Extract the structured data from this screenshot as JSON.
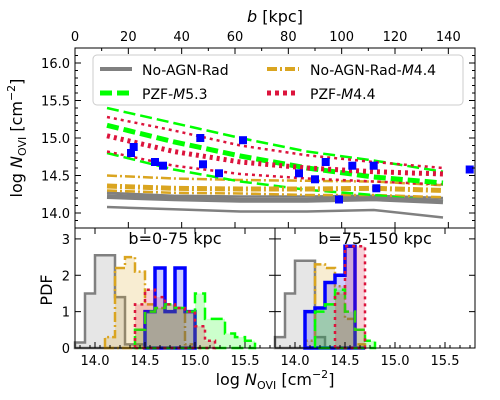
{
  "chart_data": [
    {
      "type": "line",
      "panel": "top",
      "xlabel_top": "b [kpc]",
      "xlim": [
        0,
        150
      ],
      "xticks": [
        0,
        20,
        40,
        60,
        80,
        100,
        120,
        140
      ],
      "ylabel": "log N_OVI [cm^-2]",
      "ylim": [
        13.8,
        16.2
      ],
      "yticks": [
        14.0,
        14.5,
        15.0,
        15.5,
        16.0
      ],
      "grid": false,
      "legend_position": "top",
      "legend": [
        {
          "label": "No-AGN-Rad",
          "color": "#808080",
          "style": "solid"
        },
        {
          "label": "No-AGN-Rad-M4.4",
          "color": "#DAA520",
          "style": "dashdot"
        },
        {
          "label": "PZF-M5.3",
          "color": "#00FF00",
          "style": "dashed"
        },
        {
          "label": "PZF-M4.4",
          "color": "#DC143C",
          "style": "dotted"
        }
      ],
      "series": [
        {
          "name": "No-AGN-Rad",
          "color": "#808080",
          "style": "solid",
          "x": [
            12,
            37,
            62,
            87,
            112,
            138
          ],
          "median": [
            14.22,
            14.19,
            14.17,
            14.17,
            14.19,
            14.15
          ],
          "p16": [
            14.08,
            14.05,
            14.02,
            14.02,
            14.04,
            13.94
          ],
          "p84": [
            14.27,
            14.23,
            14.22,
            14.22,
            14.23,
            14.2
          ]
        },
        {
          "name": "No-AGN-Rad-M4.4",
          "color": "#DAA520",
          "style": "dashdot",
          "x": [
            12,
            37,
            62,
            87,
            112,
            138
          ],
          "median": [
            14.36,
            14.33,
            14.32,
            14.32,
            14.33,
            14.3
          ],
          "p16": [
            14.3,
            14.27,
            14.26,
            14.24,
            14.24,
            14.21
          ],
          "p84": [
            14.5,
            14.46,
            14.44,
            14.43,
            14.42,
            14.37
          ]
        },
        {
          "name": "PZF-M5.3",
          "color": "#00FF00",
          "style": "dashed",
          "x": [
            12,
            37,
            62,
            87,
            112,
            138
          ],
          "median": [
            15.17,
            14.95,
            14.76,
            14.6,
            14.48,
            14.4
          ],
          "p16": [
            14.8,
            14.58,
            14.42,
            14.31,
            14.24,
            14.15
          ],
          "p84": [
            15.4,
            15.2,
            15.0,
            14.82,
            14.7,
            14.55
          ]
        },
        {
          "name": "PZF-M4.4",
          "color": "#DC143C",
          "style": "dotted",
          "x": [
            12,
            37,
            62,
            87,
            112,
            138
          ],
          "median": [
            15.03,
            14.82,
            14.68,
            14.6,
            14.55,
            14.52
          ],
          "p16": [
            14.82,
            14.63,
            14.52,
            14.46,
            14.42,
            14.38
          ],
          "p84": [
            15.28,
            15.1,
            14.9,
            14.77,
            14.68,
            14.6
          ]
        }
      ],
      "observations": {
        "color": "#0000FF",
        "points": [
          {
            "x": 21,
            "y": 14.8
          },
          {
            "x": 22,
            "y": 14.88
          },
          {
            "x": 30,
            "y": 14.68
          },
          {
            "x": 33,
            "y": 14.63
          },
          {
            "x": 47,
            "y": 15.0
          },
          {
            "x": 48,
            "y": 14.65
          },
          {
            "x": 54,
            "y": 14.53
          },
          {
            "x": 63,
            "y": 14.97
          },
          {
            "x": 84,
            "y": 14.53
          },
          {
            "x": 90,
            "y": 14.45
          },
          {
            "x": 94,
            "y": 14.68
          },
          {
            "x": 99,
            "y": 14.18
          },
          {
            "x": 104,
            "y": 14.63
          },
          {
            "x": 112,
            "y": 14.63
          },
          {
            "x": 113,
            "y": 14.33
          },
          {
            "x": 148,
            "y": 14.58
          }
        ]
      }
    },
    {
      "type": "histogram",
      "panel": "bottom-left",
      "title": "b=0-75 kpc",
      "xlim": [
        13.8,
        15.8
      ],
      "xticks": [
        14.0,
        14.5,
        15.0,
        15.5
      ],
      "ylabel": "PDF",
      "ylim": [
        0,
        3.3
      ],
      "yticks": [
        0,
        1,
        2,
        3
      ],
      "series": [
        {
          "name": "No-AGN-Rad",
          "color": "#808080",
          "style": "solid",
          "edges": [
            13.8,
            13.9,
            14.0,
            14.1,
            14.2,
            14.3,
            14.4,
            14.5
          ],
          "values": [
            0.15,
            1.5,
            2.55,
            2.55,
            1.4,
            0.1,
            0.1
          ]
        },
        {
          "name": "No-AGN-Rad-M4.4",
          "color": "#DAA520",
          "style": "dashdot",
          "edges": [
            14.1,
            14.2,
            14.3,
            14.4,
            14.5,
            14.6,
            14.7,
            14.8,
            14.9,
            15.0
          ],
          "values": [
            0.3,
            2.2,
            2.5,
            2.1,
            1.2,
            1.1,
            1.0,
            1.1,
            0.1
          ]
        },
        {
          "name": "Observations",
          "color": "#0000FF",
          "style": "solid",
          "edges": [
            14.5,
            14.6,
            14.7,
            14.8,
            14.9,
            15.0
          ],
          "values": [
            1.0,
            2.2,
            1.0,
            2.2,
            1.0
          ]
        },
        {
          "name": "PZF-M5.3",
          "color": "#00FF00",
          "style": "dashed",
          "edges": [
            14.4,
            14.5,
            14.6,
            14.7,
            14.8,
            14.9,
            15.0,
            15.1,
            15.2,
            15.3,
            15.4,
            15.5,
            15.6
          ],
          "values": [
            0.5,
            1.0,
            1.1,
            1.2,
            1.1,
            1.0,
            1.5,
            0.8,
            0.8,
            0.4,
            0.3,
            0.2
          ]
        },
        {
          "name": "PZF-M4.4",
          "color": "#DC143C",
          "style": "dotted",
          "edges": [
            14.4,
            14.5,
            14.6,
            14.7,
            14.8,
            14.9,
            15.0,
            15.1,
            15.2
          ],
          "values": [
            1.2,
            1.6,
            1.4,
            1.2,
            1.1,
            1.0,
            0.6,
            0.2
          ]
        }
      ]
    },
    {
      "type": "histogram",
      "panel": "bottom-right",
      "title": "b=75-150 kpc",
      "xlim": [
        13.8,
        15.8
      ],
      "xticks": [
        14.0,
        14.5,
        15.0,
        15.5
      ],
      "ylim": [
        0,
        3.3
      ],
      "series": [
        {
          "name": "No-AGN-Rad",
          "color": "#808080",
          "style": "solid",
          "edges": [
            13.8,
            13.9,
            14.0,
            14.1,
            14.2,
            14.3
          ],
          "values": [
            0.3,
            1.5,
            2.4,
            2.4,
            0.3
          ]
        },
        {
          "name": "No-AGN-Rad-M4.4",
          "color": "#DAA520",
          "style": "dashdot",
          "edges": [
            14.1,
            14.2,
            14.3,
            14.4,
            14.5,
            14.6,
            14.7
          ],
          "values": [
            0.2,
            2.3,
            2.2,
            1.7,
            0.8,
            0.1
          ]
        },
        {
          "name": "Observations",
          "color": "#0000FF",
          "style": "solid",
          "edges": [
            14.1,
            14.2,
            14.3,
            14.4,
            14.5,
            14.6,
            14.7
          ],
          "values": [
            1.0,
            1.1,
            1.8,
            2.0,
            2.8,
            0.0
          ]
        },
        {
          "name": "PZF-M5.3",
          "color": "#00FF00",
          "style": "dashed",
          "edges": [
            14.2,
            14.3,
            14.4,
            14.5,
            14.6,
            14.7,
            14.8
          ],
          "values": [
            1.0,
            1.2,
            1.6,
            1.0,
            0.5,
            0.2
          ]
        },
        {
          "name": "PZF-M4.4",
          "color": "#DC143C",
          "style": "dotted",
          "edges": [
            14.4,
            14.5,
            14.6,
            14.7
          ],
          "values": [
            1.5,
            2.8,
            2.8
          ]
        }
      ]
    }
  ],
  "labels": {
    "top_xlabel_prefix": "b",
    "top_xlabel_suffix": " [kpc]",
    "ylabel_log": "log",
    "ylabel_N": "N",
    "ylabel_sub": "OVI",
    "ylabel_unit": " [cm",
    "ylabel_exp": "−2",
    "ylabel_close": "]",
    "bottom_ylabel": "PDF",
    "bottom_xlabel_log": "log",
    "bottom_xlabel_N": "N",
    "bottom_xlabel_sub": "OVI",
    "bottom_xlabel_unit": " [cm",
    "bottom_xlabel_exp": "−2",
    "bottom_xlabel_close": "]",
    "legend": {
      "item1": "No-AGN-Rad",
      "item2_prefix": "No-AGN-Rad-",
      "item2_m": "M",
      "item2_val": "4.4",
      "item3_prefix": "PZF-",
      "item3_m": "M",
      "item3_val": "5.3",
      "item4_prefix": "PZF-",
      "item4_m": "M",
      "item4_val": "4.4"
    }
  }
}
